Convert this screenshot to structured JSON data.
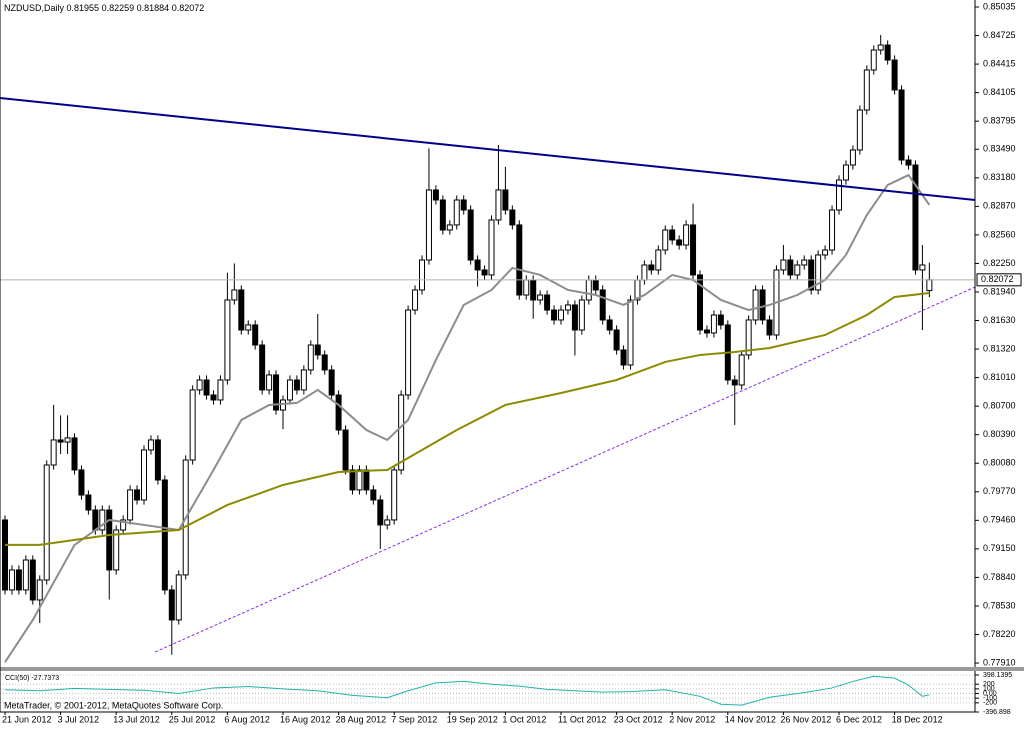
{
  "chart_data": [
    {
      "type": "candlestick",
      "title": "NZDUSD,Daily",
      "categories": [
        "21 Jun 2012",
        null,
        null,
        null,
        null,
        null,
        null,
        null,
        "3 Jul 2012",
        null,
        null,
        null,
        null,
        null,
        null,
        null,
        "13 Jul 2012",
        null,
        null,
        null,
        null,
        null,
        null,
        null,
        "25 Jul 2012",
        null,
        null,
        null,
        null,
        null,
        null,
        null,
        "6 Aug 2012",
        null,
        null,
        null,
        null,
        null,
        null,
        null,
        "16 Aug 2012",
        null,
        null,
        null,
        null,
        null,
        null,
        null,
        "28 Aug 2012",
        null,
        null,
        null,
        null,
        null,
        null,
        null,
        "7 Sep 2012",
        null,
        null,
        null,
        null,
        null,
        null,
        null,
        "19 Sep 2012",
        null,
        null,
        null,
        null,
        null,
        null,
        null,
        "1 Oct 2012",
        null,
        null,
        null,
        null,
        null,
        null,
        null,
        "11 Oct 2012",
        null,
        null,
        null,
        null,
        null,
        null,
        null,
        "23 Oct 2012",
        null,
        null,
        null,
        null,
        null,
        null,
        null,
        "2 Nov 2012",
        null,
        null,
        null,
        null,
        null,
        null,
        null,
        "14 Nov 2012",
        null,
        null,
        null,
        null,
        null,
        null,
        null,
        "26 Nov 2012",
        null,
        null,
        null,
        null,
        null,
        null,
        null,
        "6 Dec 2012",
        null,
        null,
        null,
        null,
        null,
        null,
        null,
        "18 Dec 2012",
        null,
        null,
        null,
        null,
        null
      ],
      "open": [
        0.79464,
        0.78704,
        0.78921,
        0.78704,
        0.79029,
        0.78595,
        0.78812,
        0.80061,
        0.80333,
        0.8031,
        0.80355,
        0.80007,
        0.79735,
        0.79572,
        0.79355,
        0.79572,
        0.78921,
        0.79355,
        0.79464,
        0.7979,
        0.79681,
        0.80224,
        0.80333,
        0.79898,
        0.78704,
        0.78378,
        0.78867,
        0.80115,
        0.80876,
        0.80984,
        0.80821,
        0.80767,
        0.80984,
        0.81853,
        0.81962,
        0.81527,
        0.81582,
        0.81364,
        0.80876,
        0.81039,
        0.80658,
        0.80767,
        0.80984,
        0.80876,
        0.81093,
        0.81364,
        0.81256,
        0.81093,
        0.80821,
        0.80441,
        0.80007,
        0.7979,
        0.80007,
        0.7979,
        0.79681,
        0.7941,
        0.79464,
        0.80007,
        0.80821,
        0.81744,
        0.81962,
        0.82287,
        0.83048,
        0.82939,
        0.82613,
        0.82668,
        0.82939,
        0.8283,
        0.82287,
        0.82179,
        0.82125,
        0.82722,
        0.83048,
        0.8283,
        0.82668,
        0.81907,
        0.8207,
        0.81853,
        0.81907,
        0.81744,
        0.81636,
        0.81744,
        0.81799,
        0.81527,
        0.81853,
        0.8207,
        0.81962,
        0.81636,
        0.81527,
        0.8131,
        0.81147,
        0.81853,
        0.8207,
        0.82233,
        0.82179,
        0.82396,
        0.82613,
        0.82505,
        0.8245,
        0.82668,
        0.82125,
        0.81527,
        0.81495,
        0.8169,
        0.81582,
        0.80984,
        0.8093,
        0.81256,
        0.81636,
        0.81962,
        0.81636,
        0.81473,
        0.82179,
        0.82287,
        0.82125,
        0.82233,
        0.82287,
        0.81962,
        0.82342,
        0.82396,
        0.8283,
        0.83156,
        0.83319,
        0.83482,
        0.83916,
        0.84351,
        0.84568,
        0.84622,
        0.84459,
        0.84134,
        0.83373,
        0.83319,
        0.82179,
        0.81955
      ],
      "high": [
        0.79514,
        0.78971,
        0.78971,
        0.79079,
        0.79079,
        0.78862,
        0.80111,
        0.80714,
        0.806,
        0.806,
        0.80405,
        0.80057,
        0.79785,
        0.79622,
        0.79622,
        0.79622,
        0.79405,
        0.79514,
        0.7984,
        0.7984,
        0.80274,
        0.80383,
        0.80383,
        0.79948,
        0.78754,
        0.78917,
        0.80165,
        0.80926,
        0.81034,
        0.81034,
        0.80871,
        0.81034,
        0.8215,
        0.8225,
        0.82012,
        0.81632,
        0.81632,
        0.81414,
        0.81089,
        0.81089,
        0.80817,
        0.81034,
        0.81034,
        0.81143,
        0.81414,
        0.817,
        0.81306,
        0.81143,
        0.80871,
        0.80491,
        0.8006,
        0.80057,
        0.80057,
        0.7984,
        0.79731,
        0.79514,
        0.80057,
        0.80871,
        0.81794,
        0.82012,
        0.82337,
        0.835,
        0.83098,
        0.82989,
        0.82718,
        0.82989,
        0.82989,
        0.8288,
        0.82337,
        0.82229,
        0.82772,
        0.83536,
        0.833,
        0.8288,
        0.82718,
        0.8212,
        0.8212,
        0.81957,
        0.81957,
        0.81794,
        0.81794,
        0.81849,
        0.81849,
        0.81903,
        0.8212,
        0.8212,
        0.82012,
        0.81686,
        0.81577,
        0.8136,
        0.81903,
        0.8212,
        0.82283,
        0.82283,
        0.82446,
        0.82663,
        0.82663,
        0.82555,
        0.82718,
        0.829,
        0.82175,
        0.81577,
        0.8174,
        0.8174,
        0.81632,
        0.81034,
        0.81306,
        0.81686,
        0.82012,
        0.82012,
        0.81686,
        0.82229,
        0.8245,
        0.82337,
        0.82283,
        0.82337,
        0.82337,
        0.82392,
        0.82446,
        0.8288,
        0.83206,
        0.83369,
        0.83532,
        0.83966,
        0.84401,
        0.84618,
        0.84731,
        0.84672,
        0.84509,
        0.84184,
        0.83423,
        0.83369,
        0.8245,
        0.82259
      ],
      "low": [
        0.78654,
        0.78654,
        0.78654,
        0.78654,
        0.78545,
        0.78345,
        0.78762,
        0.80011,
        0.8018,
        0.8018,
        0.79957,
        0.79685,
        0.79522,
        0.79305,
        0.79305,
        0.786,
        0.78871,
        0.79305,
        0.79414,
        0.79631,
        0.79631,
        0.80174,
        0.79848,
        0.78654,
        0.78,
        0.78328,
        0.78817,
        0.80065,
        0.80826,
        0.80771,
        0.80717,
        0.80717,
        0.80934,
        0.81803,
        0.81477,
        0.81477,
        0.81314,
        0.80826,
        0.80826,
        0.80608,
        0.8045,
        0.80717,
        0.80826,
        0.80826,
        0.81043,
        0.81206,
        0.81043,
        0.80771,
        0.80391,
        0.79957,
        0.7974,
        0.7974,
        0.7974,
        0.79631,
        0.7915,
        0.7936,
        0.79414,
        0.79957,
        0.80771,
        0.81694,
        0.81912,
        0.82237,
        0.82889,
        0.82563,
        0.82563,
        0.82618,
        0.8278,
        0.82237,
        0.82,
        0.82075,
        0.82075,
        0.82672,
        0.8278,
        0.82618,
        0.81857,
        0.81857,
        0.8165,
        0.81803,
        0.81694,
        0.81586,
        0.81586,
        0.81694,
        0.8125,
        0.81477,
        0.81803,
        0.81912,
        0.81586,
        0.81477,
        0.8126,
        0.81097,
        0.81097,
        0.81803,
        0.8202,
        0.82129,
        0.82129,
        0.82346,
        0.82455,
        0.824,
        0.824,
        0.82075,
        0.81477,
        0.81445,
        0.81445,
        0.81532,
        0.80934,
        0.80496,
        0.8088,
        0.81206,
        0.81586,
        0.81586,
        0.81423,
        0.81423,
        0.82129,
        0.82075,
        0.82075,
        0.82183,
        0.81912,
        0.81912,
        0.82292,
        0.82346,
        0.8278,
        0.83106,
        0.83269,
        0.83432,
        0.83866,
        0.84301,
        0.84518,
        0.84409,
        0.84084,
        0.83323,
        0.83269,
        0.82129,
        0.81527,
        0.81884
      ],
      "close": [
        0.78704,
        0.78921,
        0.78704,
        0.79029,
        0.78595,
        0.78812,
        0.80061,
        0.80333,
        0.8031,
        0.80355,
        0.80007,
        0.79735,
        0.79572,
        0.79355,
        0.79572,
        0.78921,
        0.79355,
        0.79464,
        0.7979,
        0.79681,
        0.80224,
        0.80333,
        0.79898,
        0.78704,
        0.78378,
        0.78867,
        0.80115,
        0.80876,
        0.80984,
        0.80821,
        0.80767,
        0.80984,
        0.81853,
        0.81962,
        0.81527,
        0.81582,
        0.81364,
        0.80876,
        0.81039,
        0.80658,
        0.80767,
        0.80984,
        0.80876,
        0.81093,
        0.81364,
        0.81256,
        0.81093,
        0.80821,
        0.80441,
        0.80007,
        0.7979,
        0.80007,
        0.7979,
        0.79681,
        0.7941,
        0.79464,
        0.80007,
        0.80821,
        0.81744,
        0.81962,
        0.82287,
        0.83048,
        0.82939,
        0.82613,
        0.82668,
        0.82939,
        0.8283,
        0.82287,
        0.82179,
        0.82125,
        0.82722,
        0.83048,
        0.8283,
        0.82668,
        0.81907,
        0.8207,
        0.81853,
        0.81907,
        0.81744,
        0.81636,
        0.81744,
        0.81799,
        0.81527,
        0.81853,
        0.8207,
        0.81962,
        0.81636,
        0.81527,
        0.8131,
        0.81147,
        0.81853,
        0.8207,
        0.82233,
        0.82179,
        0.82396,
        0.82613,
        0.82505,
        0.8245,
        0.82668,
        0.82125,
        0.81527,
        0.81495,
        0.8169,
        0.81582,
        0.80984,
        0.8093,
        0.81256,
        0.81636,
        0.81962,
        0.81636,
        0.81473,
        0.82179,
        0.82287,
        0.82125,
        0.82233,
        0.82287,
        0.81962,
        0.82342,
        0.82396,
        0.8283,
        0.83156,
        0.83319,
        0.83482,
        0.83916,
        0.84351,
        0.84568,
        0.84622,
        0.84459,
        0.84134,
        0.83373,
        0.83319,
        0.82179,
        0.82233,
        0.82072
      ],
      "ylim": [
        0.77867,
        0.85111
      ],
      "yticks": [
        0.85035,
        0.84725,
        0.84415,
        0.84105,
        0.83795,
        {
          "value": 0.8349,
          "label": "0.83490"
        },
        {
          "value": 0.8318,
          "label": "0.83180"
        },
        {
          "value": 0.8287,
          "label": "0.82870"
        },
        {
          "value": 0.8256,
          "label": "0.82560"
        },
        {
          "value": 0.8225,
          "label": "0.82250"
        },
        {
          "value": 0.8194,
          "label": "0.81940"
        },
        {
          "value": 0.8163,
          "label": "0.81630"
        },
        {
          "value": 0.8132,
          "label": "0.81320"
        },
        {
          "value": 0.8101,
          "label": "0.81010"
        },
        {
          "value": 0.807,
          "label": "0.80700"
        },
        {
          "value": 0.8039,
          "label": "0.80390"
        },
        {
          "value": 0.8008,
          "label": "0.80080"
        },
        {
          "value": 0.7977,
          "label": "0.79770"
        },
        {
          "value": 0.7946,
          "label": "0.79460"
        },
        {
          "value": 0.7915,
          "label": "0.79150"
        },
        {
          "value": 0.7884,
          "label": "0.78840"
        },
        {
          "value": 0.7853,
          "label": "0.78530"
        },
        {
          "value": 0.7822,
          "label": "0.78220"
        },
        {
          "value": 0.7791,
          "label": "0.77910"
        }
      ],
      "colors": {
        "up": "#ffffff",
        "down": "#000000",
        "edge": "#000000"
      },
      "overlays": [
        {
          "color": "#8c8c8c",
          "x": [
            0,
            4,
            10,
            15,
            20,
            25,
            30,
            34,
            38,
            42,
            45,
            48,
            52,
            55,
            58,
            62,
            66,
            70,
            73,
            77,
            81,
            85,
            89,
            92,
            96,
            99,
            103,
            107,
            110,
            114,
            118,
            121,
            124,
            127,
            130,
            133
          ],
          "values": [
            0.77919,
            0.78378,
            0.79192,
            0.79464,
            0.7941,
            0.79355,
            0.80007,
            0.8055,
            0.80713,
            0.80735,
            0.80876,
            0.80713,
            0.80441,
            0.80333,
            0.8055,
            0.81202,
            0.81799,
            0.81962,
            0.82201,
            0.82125,
            0.81962,
            0.81907,
            0.81799,
            0.81907,
            0.82125,
            0.8207,
            0.81853,
            0.81744,
            0.81799,
            0.81907,
            0.8207,
            0.82342,
            0.82776,
            0.83102,
            0.8321,
            0.82885
          ]
        },
        {
          "color": "#8b8b00",
          "x": [
            0,
            5,
            15,
            25,
            32,
            40,
            48,
            55,
            60,
            65,
            72,
            80,
            88,
            95,
            100,
            105,
            110,
            118,
            124,
            128,
            133
          ],
          "values": [
            0.79193,
            0.79193,
            0.79301,
            0.79355,
            0.79627,
            0.79844,
            0.79985,
            0.80007,
            0.80224,
            0.80441,
            0.80713,
            0.80843,
            0.80984,
            0.8118,
            0.81256,
            0.81288,
            0.81332,
            0.81473,
            0.8169,
            0.81886,
            0.81929
          ]
        }
      ],
      "trendlines": [
        {
          "color": "#00008b",
          "style": "solid",
          "x": [
            -0.72,
            139.6
          ],
          "values": [
            0.84047,
            0.82939
          ]
        },
        {
          "color": "#8a2be2",
          "style": "dashed",
          "x": [
            21.6,
            139.6
          ],
          "values": [
            0.7803,
            0.81994
          ]
        }
      ],
      "footer": "MetaTrader, © 2001-2012, MetaQuotes Software Corp."
    },
    {
      "type": "line",
      "title": "CCI(50)",
      "color": "#20b2aa",
      "grid": true,
      "x": [
        0,
        5,
        10,
        15,
        20,
        25,
        30,
        35,
        40,
        45,
        50,
        55,
        58,
        62,
        66,
        70,
        74,
        78,
        82,
        86,
        90,
        95,
        100,
        103,
        106,
        110,
        115,
        119,
        122,
        125,
        128,
        130,
        132,
        133
      ],
      "values": [
        80,
        60,
        110,
        90,
        70,
        0,
        120,
        150,
        100,
        60,
        -40,
        -90,
        60,
        230,
        260,
        200,
        160,
        90,
        60,
        30,
        40,
        80,
        -60,
        -230,
        -250,
        -80,
        20,
        120,
        260,
        370,
        330,
        180,
        -60,
        -27.7373
      ],
      "ylim": [
        -396.898,
        398.1395
      ],
      "yticks": [
        398.1395,
        200,
        100,
        {
          "value": 0,
          "label": "0.00"
        },
        -100,
        -200,
        -396.898
      ]
    }
  ]
}
